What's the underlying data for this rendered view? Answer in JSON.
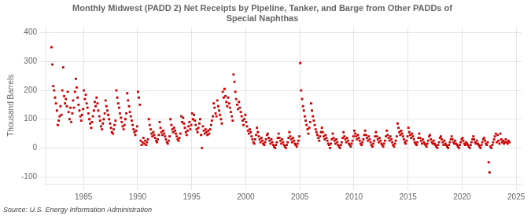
{
  "chart_data": {
    "type": "scatter",
    "title": "Monthly Midwest (PADD 2) Net Receipts by Pipeline, Tanker, and Barge from Other PADDs of\nSpecial Naphthas",
    "y_label": "Thousand Barrels",
    "annotations": [
      "Source: U.S. Energy Information Administration"
    ],
    "xlim": [
      1981.5,
      2025.5
    ],
    "ylim": [
      -125,
      420
    ],
    "xticks": [
      1985,
      1990,
      1995,
      2000,
      2005,
      2010,
      2015,
      2020,
      2025
    ],
    "yticks": [
      -100,
      0,
      100,
      200,
      300,
      400
    ],
    "color": "#CC0000",
    "marker": "square",
    "grid": true,
    "x": [
      1982.04,
      1982.12,
      1982.21,
      1982.29,
      1982.37,
      1982.46,
      1982.54,
      1982.62,
      1982.71,
      1982.79,
      1982.87,
      1982.96,
      1983.04,
      1983.12,
      1983.21,
      1983.29,
      1983.37,
      1983.46,
      1983.54,
      1983.62,
      1983.71,
      1983.79,
      1983.87,
      1983.96,
      1984.04,
      1984.12,
      1984.21,
      1984.29,
      1984.37,
      1984.46,
      1984.54,
      1984.62,
      1984.71,
      1984.79,
      1984.87,
      1984.96,
      1985.04,
      1985.12,
      1985.21,
      1985.29,
      1985.37,
      1985.46,
      1985.54,
      1985.62,
      1985.71,
      1985.79,
      1985.87,
      1985.96,
      1986.04,
      1986.12,
      1986.21,
      1986.29,
      1986.37,
      1986.46,
      1986.54,
      1986.62,
      1986.71,
      1986.79,
      1986.87,
      1986.96,
      1987.04,
      1987.12,
      1987.21,
      1987.29,
      1987.37,
      1987.46,
      1987.54,
      1987.62,
      1987.71,
      1987.79,
      1987.87,
      1987.96,
      1988.04,
      1988.12,
      1988.21,
      1988.29,
      1988.37,
      1988.46,
      1988.54,
      1988.62,
      1988.71,
      1988.79,
      1988.87,
      1988.96,
      1989.04,
      1989.12,
      1989.21,
      1989.29,
      1989.37,
      1989.46,
      1989.54,
      1989.62,
      1989.71,
      1989.79,
      1989.87,
      1989.96,
      1990.04,
      1990.12,
      1990.21,
      1990.29,
      1990.37,
      1990.46,
      1990.54,
      1990.62,
      1990.71,
      1990.79,
      1990.87,
      1990.96,
      1991.04,
      1991.12,
      1991.21,
      1991.29,
      1991.37,
      1991.46,
      1991.54,
      1991.62,
      1991.71,
      1991.79,
      1991.87,
      1991.96,
      1992.04,
      1992.12,
      1992.21,
      1992.29,
      1992.37,
      1992.46,
      1992.54,
      1992.62,
      1992.71,
      1992.79,
      1992.87,
      1992.96,
      1993.04,
      1993.12,
      1993.21,
      1993.29,
      1993.37,
      1993.46,
      1993.54,
      1993.62,
      1993.71,
      1993.79,
      1993.87,
      1993.96,
      1994.04,
      1994.12,
      1994.21,
      1994.29,
      1994.37,
      1994.46,
      1994.54,
      1994.62,
      1994.71,
      1994.79,
      1994.87,
      1994.96,
      1995.04,
      1995.12,
      1995.21,
      1995.29,
      1995.37,
      1995.46,
      1995.54,
      1995.62,
      1995.71,
      1995.79,
      1995.87,
      1995.96,
      1996.04,
      1996.12,
      1996.21,
      1996.29,
      1996.37,
      1996.46,
      1996.54,
      1996.62,
      1996.71,
      1996.79,
      1996.87,
      1996.96,
      1997.04,
      1997.12,
      1997.21,
      1997.29,
      1997.37,
      1997.46,
      1997.54,
      1997.62,
      1997.71,
      1997.79,
      1997.87,
      1997.96,
      1998.04,
      1998.12,
      1998.21,
      1998.29,
      1998.37,
      1998.46,
      1998.54,
      1998.62,
      1998.71,
      1998.79,
      1998.87,
      1998.96,
      1999.04,
      1999.12,
      1999.21,
      1999.29,
      1999.37,
      1999.46,
      1999.54,
      1999.62,
      1999.71,
      1999.79,
      1999.87,
      1999.96,
      2000.04,
      2000.12,
      2000.21,
      2000.29,
      2000.37,
      2000.46,
      2000.54,
      2000.62,
      2000.71,
      2000.79,
      2000.87,
      2000.96,
      2001.04,
      2001.12,
      2001.21,
      2001.29,
      2001.37,
      2001.46,
      2001.54,
      2001.62,
      2001.71,
      2001.79,
      2001.87,
      2001.96,
      2002.04,
      2002.12,
      2002.21,
      2002.29,
      2002.37,
      2002.46,
      2002.54,
      2002.62,
      2002.71,
      2002.79,
      2002.87,
      2002.96,
      2003.04,
      2003.12,
      2003.21,
      2003.29,
      2003.37,
      2003.46,
      2003.54,
      2003.62,
      2003.71,
      2003.79,
      2003.87,
      2003.96,
      2004.04,
      2004.12,
      2004.21,
      2004.29,
      2004.37,
      2004.46,
      2004.54,
      2004.62,
      2004.71,
      2004.79,
      2004.87,
      2004.96,
      2005.04,
      2005.12,
      2005.21,
      2005.29,
      2005.37,
      2005.46,
      2005.54,
      2005.62,
      2005.71,
      2005.79,
      2005.87,
      2005.96,
      2006.04,
      2006.12,
      2006.21,
      2006.29,
      2006.37,
      2006.46,
      2006.54,
      2006.62,
      2006.71,
      2006.79,
      2006.87,
      2006.96,
      2007.04,
      2007.12,
      2007.21,
      2007.29,
      2007.37,
      2007.46,
      2007.54,
      2007.62,
      2007.71,
      2007.79,
      2007.87,
      2007.96,
      2008.04,
      2008.12,
      2008.21,
      2008.29,
      2008.37,
      2008.46,
      2008.54,
      2008.62,
      2008.71,
      2008.79,
      2008.87,
      2008.96,
      2009.04,
      2009.12,
      2009.21,
      2009.29,
      2009.37,
      2009.46,
      2009.54,
      2009.62,
      2009.71,
      2009.79,
      2009.87,
      2009.96,
      2010.04,
      2010.12,
      2010.21,
      2010.29,
      2010.37,
      2010.46,
      2010.54,
      2010.62,
      2010.71,
      2010.79,
      2010.87,
      2010.96,
      2011.04,
      2011.12,
      2011.21,
      2011.29,
      2011.37,
      2011.46,
      2011.54,
      2011.62,
      2011.71,
      2011.79,
      2011.87,
      2011.96,
      2012.04,
      2012.12,
      2012.21,
      2012.29,
      2012.37,
      2012.46,
      2012.54,
      2012.62,
      2012.71,
      2012.79,
      2012.87,
      2012.96,
      2013.04,
      2013.12,
      2013.21,
      2013.29,
      2013.37,
      2013.46,
      2013.54,
      2013.62,
      2013.71,
      2013.79,
      2013.87,
      2013.96,
      2014.04,
      2014.12,
      2014.21,
      2014.29,
      2014.37,
      2014.46,
      2014.54,
      2014.62,
      2014.71,
      2014.79,
      2014.87,
      2014.96,
      2015.04,
      2015.12,
      2015.21,
      2015.29,
      2015.37,
      2015.46,
      2015.54,
      2015.62,
      2015.71,
      2015.79,
      2015.87,
      2015.96,
      2016.04,
      2016.12,
      2016.21,
      2016.29,
      2016.37,
      2016.46,
      2016.54,
      2016.62,
      2016.71,
      2016.79,
      2016.87,
      2016.96,
      2017.04,
      2017.12,
      2017.21,
      2017.29,
      2017.37,
      2017.46,
      2017.54,
      2017.62,
      2017.71,
      2017.79,
      2017.87,
      2017.96,
      2018.04,
      2018.12,
      2018.21,
      2018.29,
      2018.37,
      2018.46,
      2018.54,
      2018.62,
      2018.71,
      2018.79,
      2018.87,
      2018.96,
      2019.04,
      2019.12,
      2019.21,
      2019.29,
      2019.37,
      2019.46,
      2019.54,
      2019.62,
      2019.71,
      2019.79,
      2019.87,
      2019.96,
      2020.04,
      2020.12,
      2020.21,
      2020.29,
      2020.37,
      2020.46,
      2020.54,
      2020.62,
      2020.71,
      2020.79,
      2020.87,
      2020.96,
      2021.04,
      2021.12,
      2021.21,
      2021.29,
      2021.37,
      2021.46,
      2021.54,
      2021.62,
      2021.71,
      2021.79,
      2021.87,
      2021.96,
      2022.04,
      2022.12,
      2022.21,
      2022.29,
      2022.37,
      2022.46,
      2022.54,
      2022.62,
      2022.71,
      2022.79,
      2022.87,
      2022.96,
      2023.04,
      2023.12,
      2023.21,
      2023.29,
      2023.37,
      2023.46,
      2023.54,
      2023.62,
      2023.71,
      2023.79,
      2023.87,
      2023.96,
      2024.04,
      2024.12,
      2024.21,
      2024.29,
      2024.37
    ],
    "values": [
      350,
      290,
      215,
      200,
      175,
      155,
      130,
      80,
      95,
      110,
      145,
      115,
      200,
      280,
      180,
      155,
      170,
      145,
      195,
      125,
      100,
      140,
      90,
      120,
      165,
      140,
      195,
      240,
      210,
      175,
      150,
      130,
      110,
      95,
      115,
      135,
      200,
      170,
      185,
      155,
      140,
      120,
      100,
      85,
      70,
      90,
      110,
      130,
      160,
      145,
      175,
      155,
      130,
      110,
      95,
      75,
      65,
      85,
      100,
      120,
      165,
      145,
      130,
      115,
      100,
      85,
      70,
      55,
      50,
      65,
      80,
      95,
      200,
      175,
      155,
      140,
      120,
      105,
      90,
      75,
      65,
      80,
      100,
      120,
      190,
      165,
      145,
      125,
      110,
      95,
      80,
      65,
      55,
      45,
      60,
      75,
      195,
      175,
      150,
      25,
      10,
      20,
      35,
      15,
      25,
      10,
      20,
      30,
      100,
      80,
      65,
      50,
      40,
      55,
      45,
      35,
      25,
      20,
      30,
      45,
      90,
      70,
      55,
      45,
      60,
      50,
      40,
      30,
      20,
      15,
      25,
      40,
      100,
      80,
      65,
      55,
      70,
      60,
      50,
      40,
      30,
      25,
      35,
      50,
      110,
      90,
      105,
      85,
      70,
      55,
      45,
      60,
      75,
      90,
      65,
      80,
      120,
      100,
      115,
      95,
      80,
      65,
      55,
      70,
      85,
      100,
      45,
      0,
      75,
      60,
      50,
      65,
      55,
      45,
      60,
      50,
      65,
      80,
      95,
      110,
      155,
      140,
      120,
      110,
      165,
      145,
      130,
      115,
      100,
      85,
      195,
      175,
      205,
      180,
      160,
      145,
      175,
      155,
      140,
      125,
      110,
      95,
      255,
      230,
      195,
      170,
      150,
      135,
      160,
      140,
      125,
      110,
      95,
      80,
      100,
      115,
      90,
      75,
      60,
      50,
      65,
      55,
      40,
      30,
      20,
      15,
      30,
      45,
      70,
      55,
      40,
      30,
      20,
      35,
      25,
      15,
      10,
      20,
      30,
      45,
      50,
      35,
      25,
      15,
      30,
      20,
      10,
      5,
      0,
      10,
      20,
      35,
      50,
      35,
      25,
      15,
      30,
      20,
      10,
      5,
      0,
      10,
      20,
      35,
      55,
      40,
      30,
      20,
      35,
      25,
      15,
      10,
      5,
      15,
      25,
      40,
      295,
      200,
      170,
      145,
      130,
      110,
      95,
      80,
      65,
      50,
      70,
      90,
      155,
      130,
      110,
      95,
      80,
      65,
      55,
      45,
      35,
      25,
      40,
      55,
      70,
      55,
      40,
      30,
      45,
      35,
      25,
      15,
      10,
      0,
      15,
      30,
      50,
      35,
      25,
      15,
      30,
      20,
      10,
      5,
      0,
      10,
      20,
      35,
      55,
      40,
      30,
      20,
      35,
      25,
      15,
      10,
      5,
      15,
      25,
      40,
      60,
      50,
      40,
      30,
      45,
      35,
      25,
      15,
      10,
      20,
      30,
      45,
      60,
      45,
      35,
      25,
      40,
      30,
      20,
      10,
      5,
      15,
      25,
      40,
      55,
      40,
      30,
      20,
      35,
      25,
      15,
      10,
      5,
      15,
      25,
      40,
      60,
      45,
      35,
      25,
      40,
      30,
      20,
      10,
      5,
      15,
      25,
      40,
      85,
      70,
      55,
      45,
      60,
      50,
      40,
      30,
      20,
      15,
      25,
      40,
      70,
      55,
      45,
      35,
      50,
      40,
      30,
      20,
      15,
      10,
      20,
      35,
      50,
      35,
      25,
      15,
      30,
      20,
      15,
      10,
      5,
      15,
      25,
      40,
      45,
      30,
      20,
      15,
      25,
      15,
      10,
      5,
      0,
      10,
      20,
      35,
      40,
      30,
      20,
      10,
      25,
      15,
      10,
      5,
      0,
      10,
      20,
      30,
      40,
      30,
      20,
      15,
      25,
      15,
      10,
      5,
      0,
      10,
      20,
      30,
      35,
      25,
      15,
      10,
      20,
      15,
      10,
      5,
      0,
      10,
      20,
      30,
      40,
      30,
      20,
      15,
      25,
      15,
      10,
      5,
      0,
      10,
      20,
      30,
      35,
      25,
      15,
      10,
      20,
      -50,
      -85,
      5,
      0,
      10,
      20,
      30,
      40,
      50,
      20,
      45,
      25,
      15,
      50,
      30,
      20,
      25,
      15,
      20,
      30,
      20,
      15,
      25,
      20
    ]
  }
}
